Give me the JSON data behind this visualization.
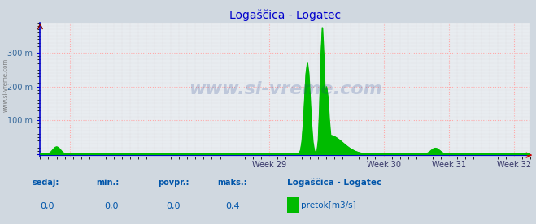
{
  "title": "Logaščica - Logatec",
  "title_color": "#0000cc",
  "bg_color": "#d0d8e0",
  "plot_bg_color": "#e8ecf0",
  "grid_color_major": "#ffaaaa",
  "grid_color_minor": "#cccccc",
  "yaxis_color": "#0000cc",
  "xaxis_color": "#0000cc",
  "arrow_color": "#cc0000",
  "watermark": "www.si-vreme.com",
  "watermark_left": "www.si-vreme.com",
  "flow_color": "#00bb00",
  "avg_line_color": "#00bb00",
  "footer_labels": [
    "sedaj:",
    "min.:",
    "povpr.:",
    "maks.:"
  ],
  "footer_values": [
    "0,0",
    "0,0",
    "0,0",
    "0,4"
  ],
  "footer_color": "#0055aa",
  "legend_station": "Logaščica - Logatec",
  "legend_param": "pretok[m3/s]",
  "legend_color": "#00bb00",
  "n_points": 360,
  "xlim": [
    0,
    360
  ],
  "ylim": [
    -8,
    385
  ],
  "week29_x": 168,
  "week30_x": 252,
  "week31_x": 300,
  "week32_x": 348,
  "red_vline_x": 22,
  "peak1_x": 196,
  "peak1_y": 270,
  "peak2_x": 207,
  "peak2_y": 375,
  "peak2b_x": 210,
  "peak2b_y": 200,
  "avg_value": 3,
  "baseline": 2,
  "bump1_x": 12,
  "bump1_y": 22,
  "bump2_x": 290,
  "bump2_y": 18
}
